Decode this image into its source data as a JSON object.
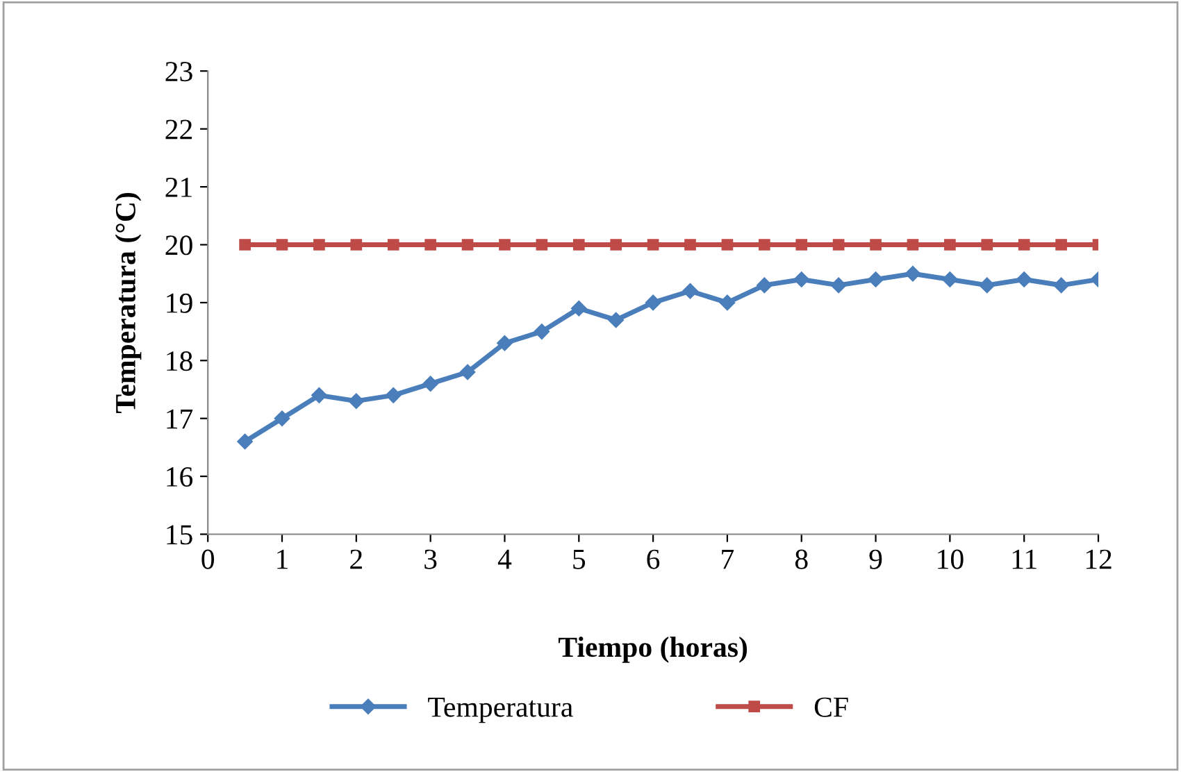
{
  "chart_data": {
    "type": "line",
    "xlabel": "Tiempo (horas)",
    "ylabel": "Temperatura (°C)",
    "x": [
      0.5,
      1,
      1.5,
      2,
      2.5,
      3,
      3.5,
      4,
      4.5,
      5,
      5.5,
      6,
      6.5,
      7,
      7.5,
      8,
      8.5,
      9,
      9.5,
      10,
      10.5,
      11,
      11.5,
      12
    ],
    "series": [
      {
        "name": "Temperatura",
        "color": "#4a7ebb",
        "marker": "diamond",
        "values": [
          16.6,
          17.0,
          17.4,
          17.3,
          17.4,
          17.6,
          17.8,
          18.3,
          18.5,
          18.9,
          18.7,
          19.0,
          19.2,
          19.0,
          19.3,
          19.4,
          19.3,
          19.4,
          19.5,
          19.4,
          19.3,
          19.4,
          19.3,
          19.4
        ]
      },
      {
        "name": "CF",
        "color": "#be4b48",
        "marker": "square",
        "values": [
          20,
          20,
          20,
          20,
          20,
          20,
          20,
          20,
          20,
          20,
          20,
          20,
          20,
          20,
          20,
          20,
          20,
          20,
          20,
          20,
          20,
          20,
          20,
          20
        ]
      }
    ],
    "xlim": [
      0,
      12
    ],
    "xticks": [
      0,
      1,
      2,
      3,
      4,
      5,
      6,
      7,
      8,
      9,
      10,
      11,
      12
    ],
    "ylim": [
      15,
      23
    ],
    "yticks": [
      15,
      16,
      17,
      18,
      19,
      20,
      21,
      22,
      23
    ],
    "grid": false,
    "legend": "bottom",
    "line_style": "solid"
  }
}
